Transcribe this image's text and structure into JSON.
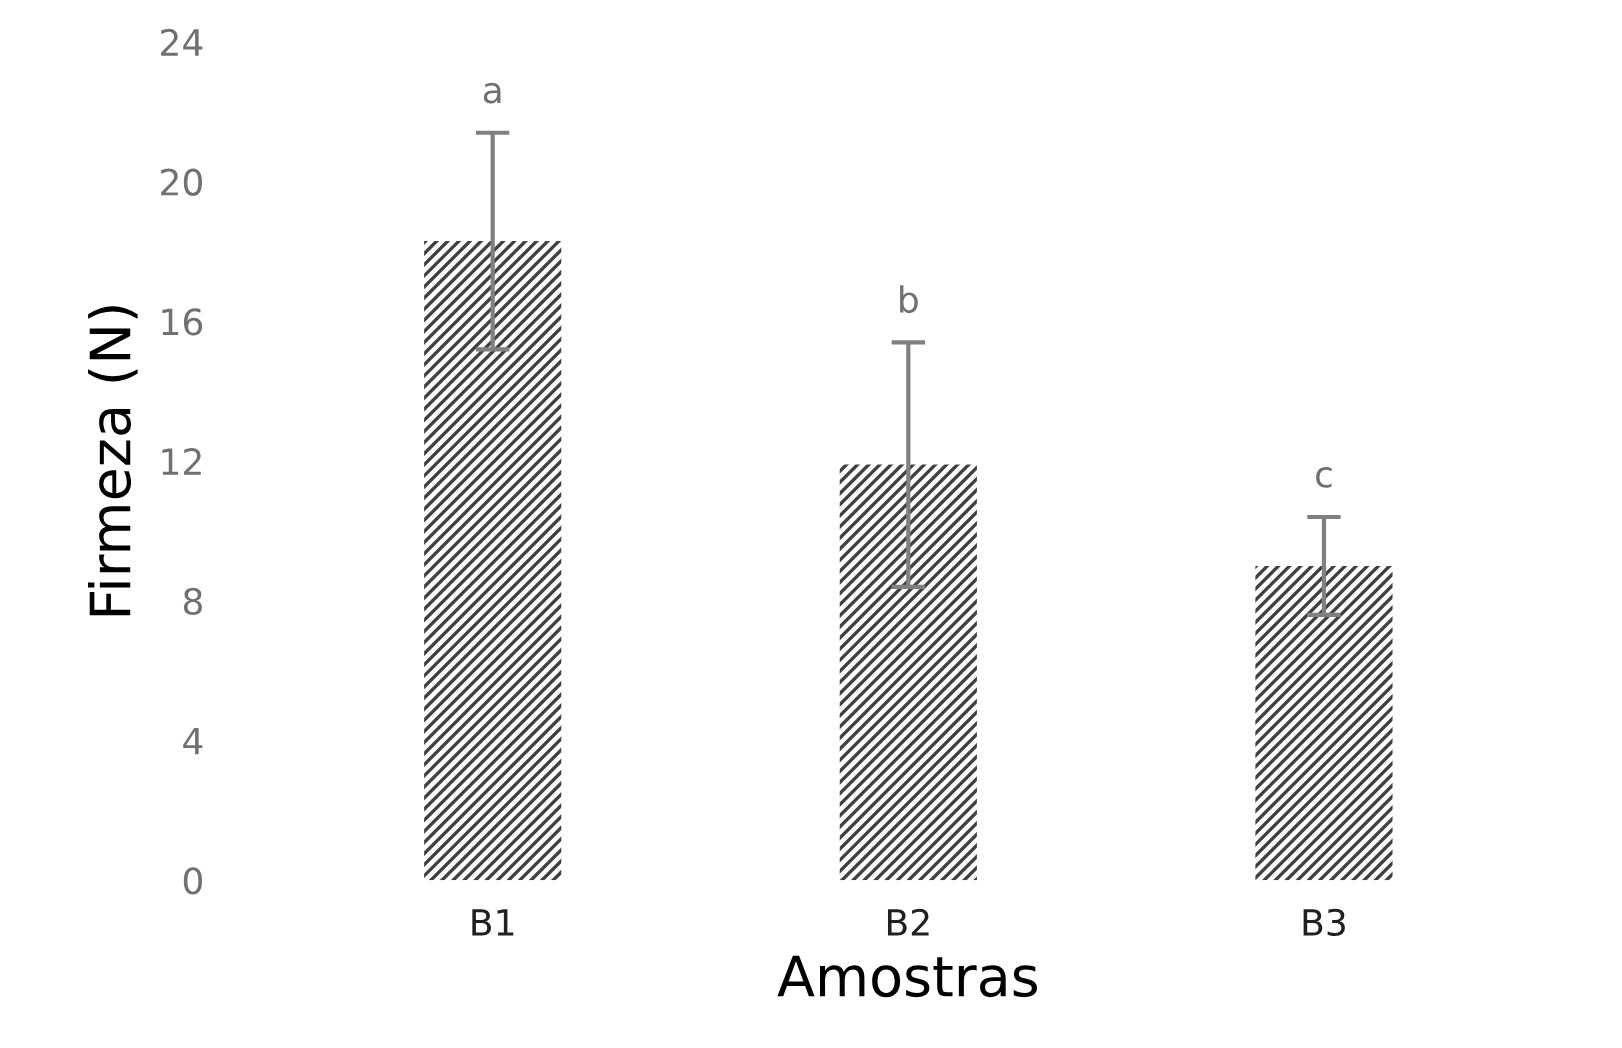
{
  "chart_data": {
    "type": "bar",
    "xlabel": "Amostras",
    "ylabel": "Firmeza (N)",
    "categories": [
      "B1",
      "B2",
      "B3"
    ],
    "values": [
      18.3,
      11.9,
      9.0
    ],
    "errors": [
      3.1,
      3.5,
      1.4
    ],
    "color": "#404040",
    "ylim": [
      0,
      24
    ],
    "yticks": [
      0,
      4,
      8,
      12,
      16,
      20,
      24
    ],
    "grid": false,
    "annotations": [
      "a",
      "b",
      "c"
    ]
  }
}
